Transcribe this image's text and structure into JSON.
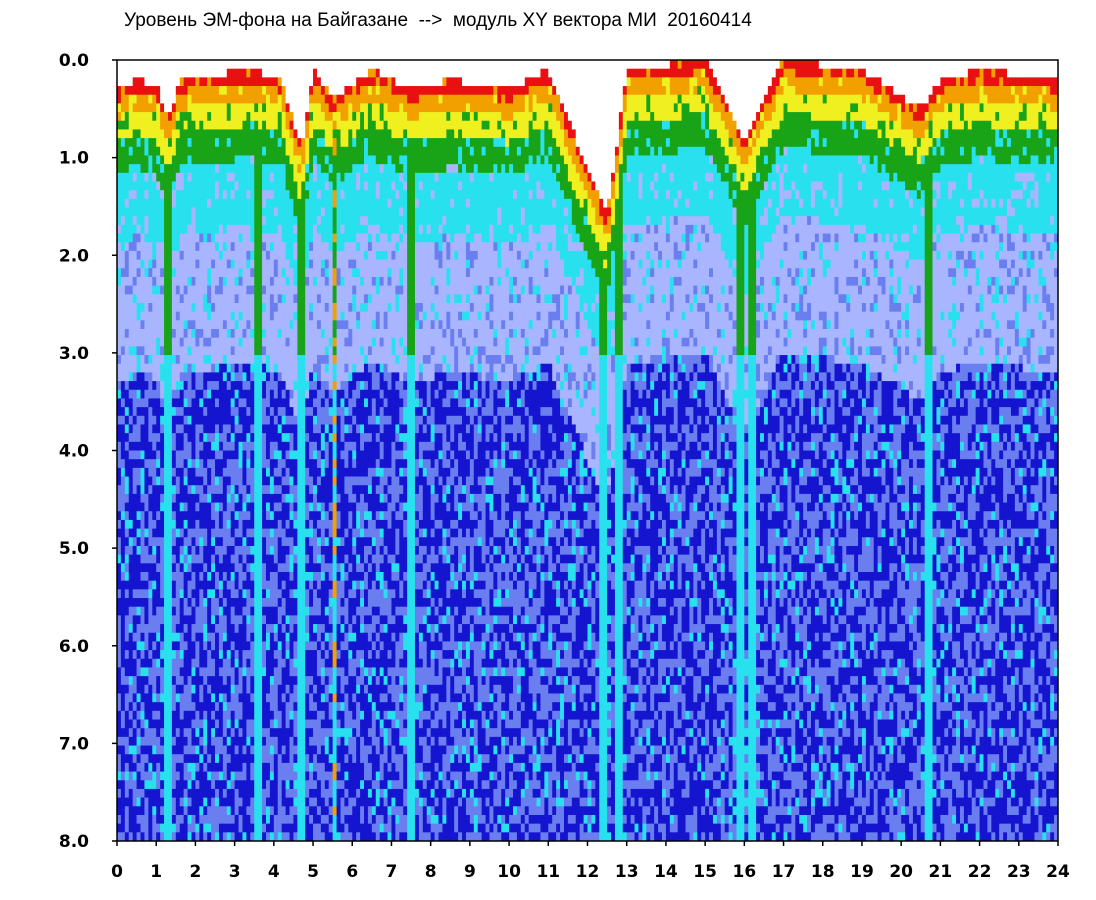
{
  "title": "Уровень ЭМ-фона на Байгазане  -->  модуль XY вектора МИ  20160414",
  "chart_data": {
    "type": "heatmap",
    "title": "Уровень ЭМ-фона на Байгазане  -->  модуль XY вектора МИ  20160414",
    "xlabel": "",
    "ylabel": "",
    "xlim": [
      0,
      24
    ],
    "ylim": [
      8.0,
      0.0
    ],
    "y_axis_inverted": true,
    "x_ticks": [
      "0",
      "1",
      "2",
      "3",
      "4",
      "5",
      "6",
      "7",
      "8",
      "9",
      "10",
      "11",
      "12",
      "13",
      "14",
      "15",
      "16",
      "17",
      "18",
      "19",
      "20",
      "21",
      "22",
      "23",
      "24"
    ],
    "y_ticks": [
      "0.0",
      "1.0",
      "2.0",
      "3.0",
      "4.0",
      "5.0",
      "6.0",
      "7.0",
      "8.0"
    ],
    "grid": false,
    "legend": "none",
    "colorscale": [
      "#1515d0",
      "#6a7ef0",
      "#a9b6ff",
      "#29e1ee",
      "#19a418",
      "#f0f020",
      "#f2a000",
      "#e81010"
    ],
    "upper_envelope": [
      {
        "x": 0.0,
        "y": 0.3
      },
      {
        "x": 0.5,
        "y": 0.2
      },
      {
        "x": 1.0,
        "y": 0.25
      },
      {
        "x": 1.3,
        "y": 0.6
      },
      {
        "x": 1.6,
        "y": 0.2
      },
      {
        "x": 2.5,
        "y": 0.15
      },
      {
        "x": 3.5,
        "y": 0.1
      },
      {
        "x": 4.2,
        "y": 0.2
      },
      {
        "x": 4.7,
        "y": 0.9
      },
      {
        "x": 5.0,
        "y": 0.1
      },
      {
        "x": 5.5,
        "y": 0.4
      },
      {
        "x": 6.5,
        "y": 0.1
      },
      {
        "x": 7.5,
        "y": 0.3
      },
      {
        "x": 8.5,
        "y": 0.2
      },
      {
        "x": 10.0,
        "y": 0.3
      },
      {
        "x": 11.0,
        "y": 0.1
      },
      {
        "x": 12.5,
        "y": 1.6
      },
      {
        "x": 13.0,
        "y": 0.1
      },
      {
        "x": 15.0,
        "y": 0.0
      },
      {
        "x": 16.0,
        "y": 0.8
      },
      {
        "x": 17.0,
        "y": 0.0
      },
      {
        "x": 19.0,
        "y": 0.1
      },
      {
        "x": 20.5,
        "y": 0.5
      },
      {
        "x": 21.0,
        "y": 0.2
      },
      {
        "x": 22.0,
        "y": 0.1
      },
      {
        "x": 24.0,
        "y": 0.2
      }
    ],
    "notch_hours": [
      1.3,
      3.6,
      4.7,
      5.55,
      7.5,
      12.4,
      12.8,
      15.9,
      16.2,
      20.7
    ]
  }
}
